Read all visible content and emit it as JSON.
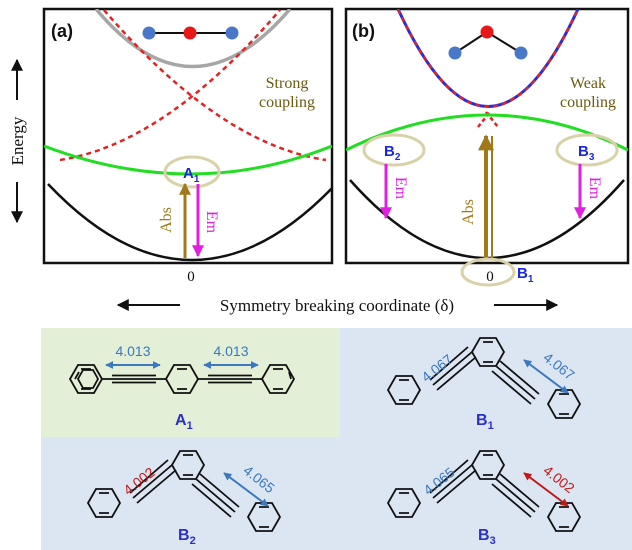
{
  "panel_a": {
    "label": "(a)",
    "coupling_line1": "Strong",
    "coupling_line2": "coupling",
    "state_letter": "A",
    "state_sub": "1",
    "abs_label": "Abs",
    "em_label": "Em",
    "zero_tick": "0"
  },
  "panel_b": {
    "label": "(b)",
    "coupling_line1": "Weak",
    "coupling_line2": "coupling",
    "state_left_letter": "B",
    "state_left_sub": "2",
    "state_right_letter": "B",
    "state_right_sub": "3",
    "state_bottom_letter": "B",
    "state_bottom_sub": "1",
    "abs_label": "Abs",
    "em_left_label": "Em",
    "em_right_label": "Em",
    "zero_tick": "0"
  },
  "y_axis_label": "Energy",
  "x_axis_label": "Symmetry breaking coordinate (δ)",
  "molecules": {
    "A1": {
      "letter": "A",
      "sub": "1",
      "left_length": "4.013",
      "right_length": "4.013"
    },
    "B1": {
      "letter": "B",
      "sub": "1",
      "left_length": "4.067",
      "right_length": "4.067"
    },
    "B2": {
      "letter": "B",
      "sub": "2",
      "left_length": "4.002",
      "right_length": "4.065"
    },
    "B3": {
      "letter": "B",
      "sub": "3",
      "left_length": "4.065",
      "right_length": "4.002"
    }
  },
  "colors": {
    "ground_curve": "#111111",
    "excited_green": "#22dd22",
    "diabatic_red": "#e02424",
    "upper_grey": "#a6a6a6",
    "upper_blue": "#2b2bd6",
    "absorption": "#a07a1a",
    "emission": "#e020e0",
    "highlight_ring": "#d8d2a8",
    "state_label_blue": "#1a2ad0",
    "coupling_text": "#6b5a10",
    "length_blue": "#3a78c0",
    "length_red": "#c01818",
    "panel_green_bg": "#e3efd6",
    "panel_blue_bg": "#dbe6f2",
    "atom_blue": "#4a78c8",
    "atom_red": "#e81818"
  }
}
